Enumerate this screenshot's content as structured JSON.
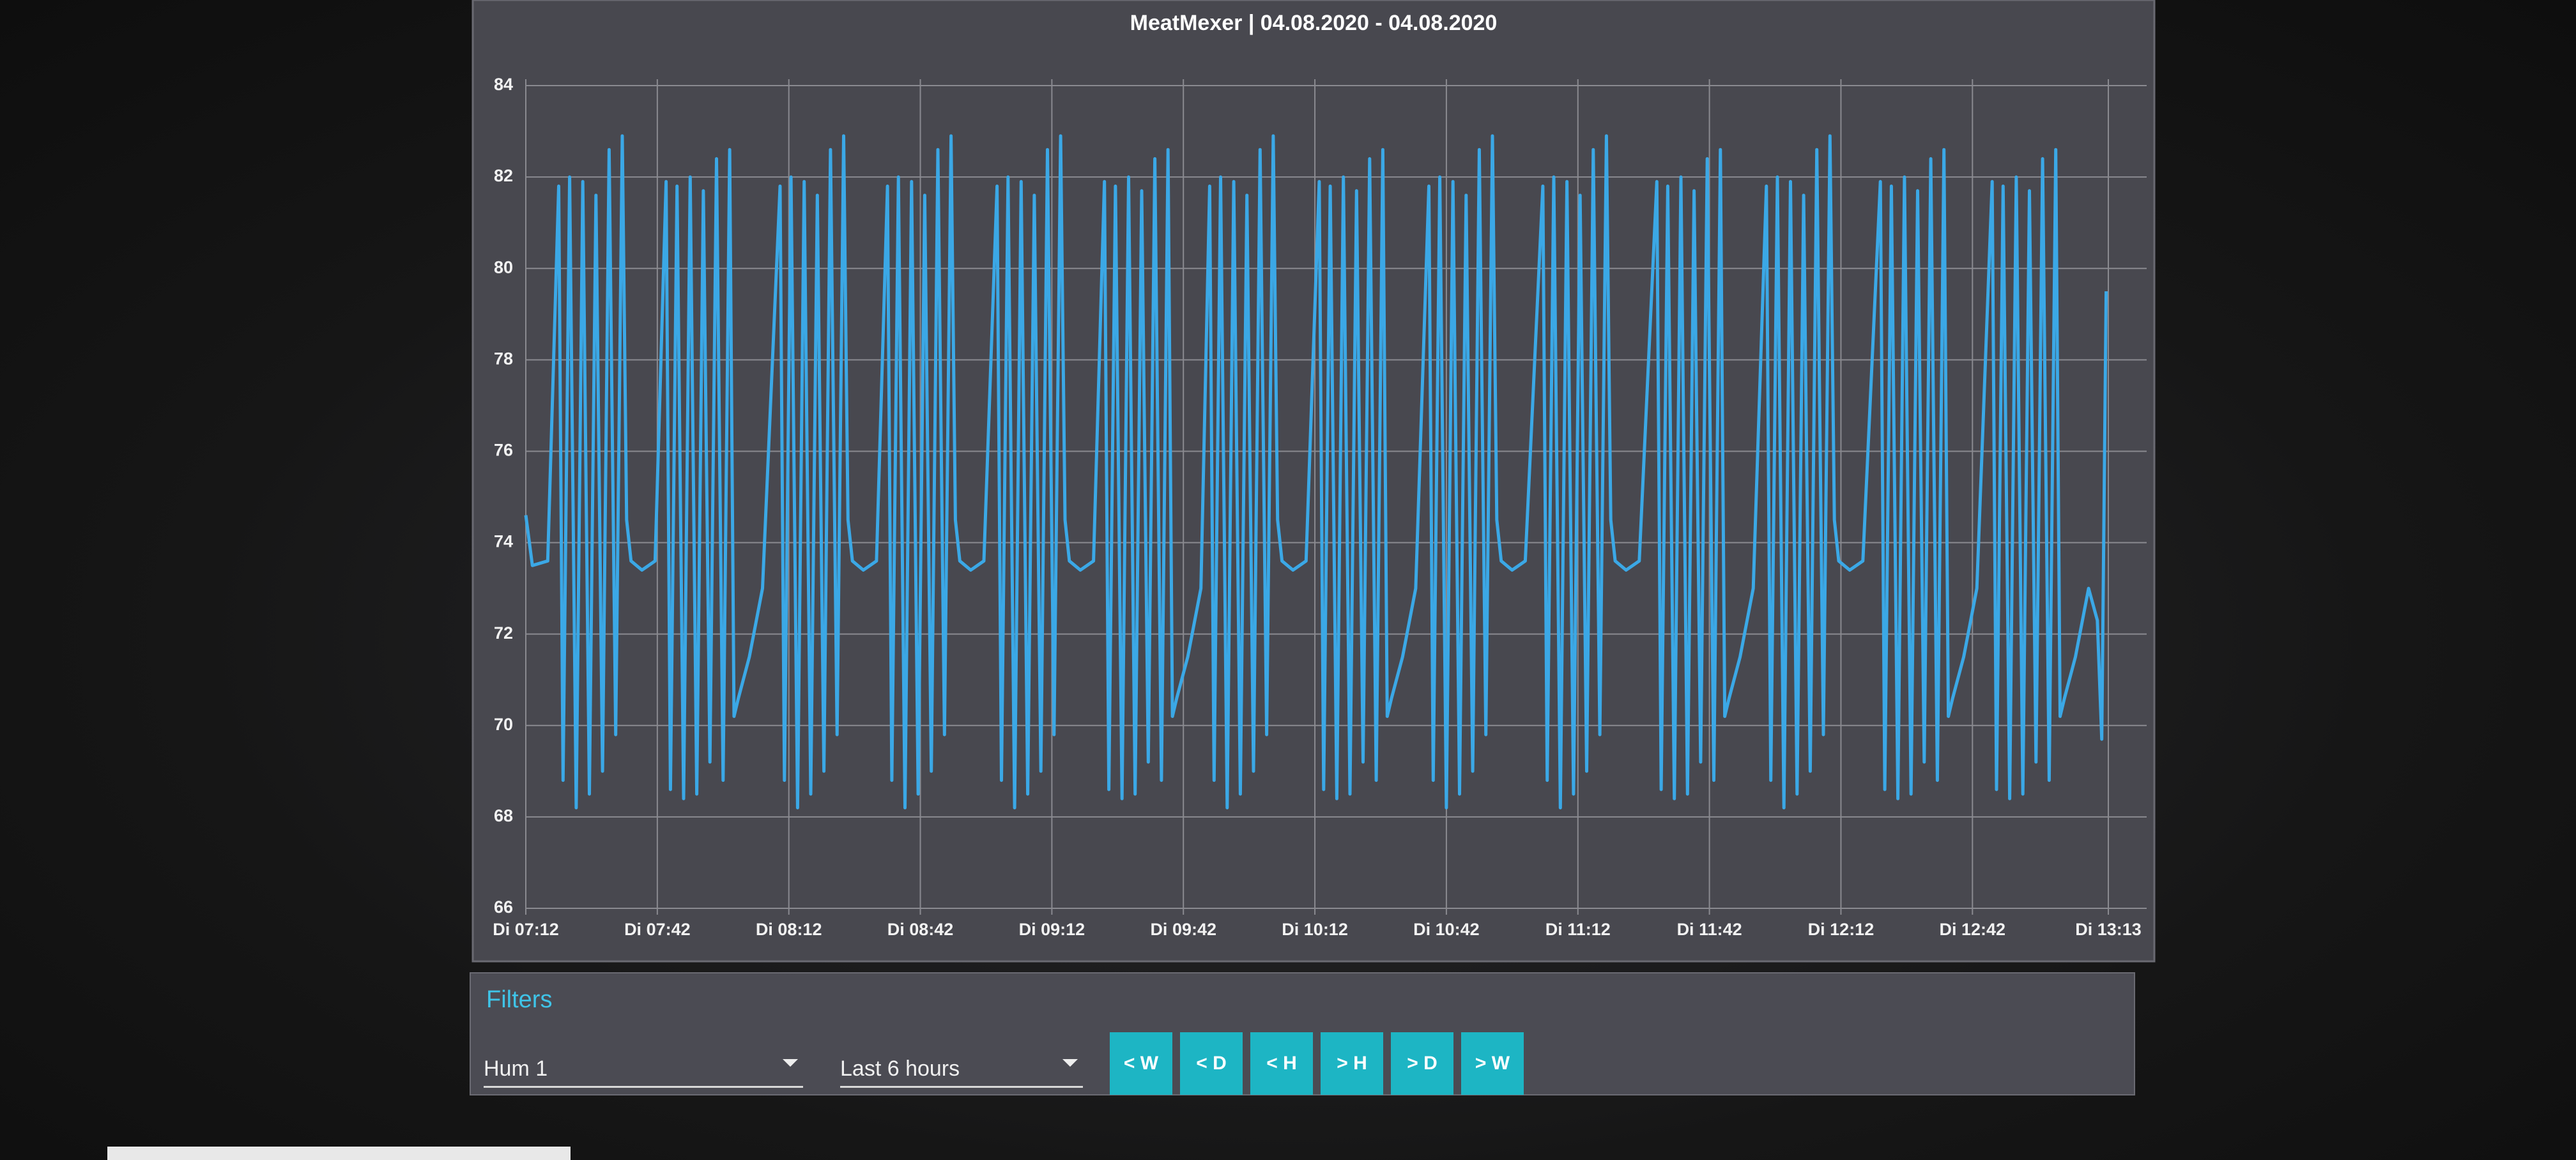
{
  "chart_data": {
    "type": "line",
    "title": "MeatMexer | 04.08.2020 - 04.08.2020",
    "color": "#3ba8e6",
    "grid": true,
    "ylim": [
      66,
      84
    ],
    "yticks": [
      66,
      68,
      70,
      72,
      74,
      76,
      78,
      80,
      82,
      84
    ],
    "xlim": [
      432,
      793
    ],
    "xticks": [
      {
        "value": 432,
        "label": "Di 07:12"
      },
      {
        "value": 462,
        "label": "Di 07:42"
      },
      {
        "value": 492,
        "label": "Di 08:12"
      },
      {
        "value": 522,
        "label": "Di 08:42"
      },
      {
        "value": 552,
        "label": "Di 09:12"
      },
      {
        "value": 582,
        "label": "Di 09:42"
      },
      {
        "value": 612,
        "label": "Di 10:12"
      },
      {
        "value": 642,
        "label": "Di 10:42"
      },
      {
        "value": 672,
        "label": "Di 11:12"
      },
      {
        "value": 702,
        "label": "Di 11:42"
      },
      {
        "value": 732,
        "label": "Di 12:12"
      },
      {
        "value": 762,
        "label": "Di 12:42"
      },
      {
        "value": 793,
        "label": "Di 13:13"
      }
    ],
    "x": [
      432,
      433.5,
      437,
      439.5,
      440.5,
      442,
      443.5,
      445,
      446.5,
      448,
      449.5,
      451,
      452.5,
      454,
      455,
      456,
      458.5,
      461.5,
      464,
      465,
      466.5,
      468,
      469.5,
      471,
      472.5,
      474,
      475.5,
      477,
      478.5,
      479.5,
      480.5,
      483,
      486,
      490,
      491,
      492.5,
      494,
      495.5,
      497,
      498.5,
      500,
      501.5,
      503,
      504.5,
      505.5,
      506.5,
      509,
      512,
      514.5,
      515.5,
      517,
      518.5,
      520,
      521.5,
      523,
      524.5,
      526,
      527.5,
      529,
      530,
      531,
      533.5,
      536.5,
      539.5,
      540.5,
      542,
      543.5,
      545,
      546.5,
      548,
      549.5,
      551,
      552.5,
      554,
      555,
      556,
      558.5,
      561.5,
      564,
      565,
      566.5,
      568,
      569.5,
      571,
      572.5,
      574,
      575.5,
      577,
      578.5,
      579.5,
      580.5,
      583,
      586,
      588,
      589,
      590.5,
      592,
      593.5,
      595,
      596.5,
      598,
      599.5,
      601,
      602.5,
      603.5,
      604.5,
      607,
      610,
      613,
      614,
      615.5,
      617,
      618.5,
      620,
      621.5,
      623,
      624.5,
      626,
      627.5,
      628.5,
      629.5,
      632,
      635,
      638,
      639,
      640.5,
      642,
      643.5,
      645,
      646.5,
      648,
      649.5,
      651,
      652.5,
      653.5,
      654.5,
      657,
      660,
      664,
      665,
      666.5,
      668,
      669.5,
      671,
      672.5,
      674,
      675.5,
      677,
      678.5,
      679.5,
      680.5,
      683,
      686,
      690,
      691,
      692.5,
      694,
      695.5,
      697,
      698.5,
      700,
      701.5,
      703,
      704.5,
      705.5,
      706.5,
      709,
      712,
      715,
      716,
      717.5,
      719,
      720.5,
      722,
      723.5,
      725,
      726.5,
      728,
      729.5,
      730.5,
      731.5,
      734,
      737,
      741,
      742,
      743.5,
      745,
      746.5,
      748,
      749.5,
      751,
      752.5,
      754,
      755.5,
      756.5,
      757.5,
      760,
      763,
      766.5,
      767.5,
      769,
      770.5,
      772,
      773.5,
      775,
      776.5,
      778,
      779.5,
      781,
      782,
      783,
      785.5,
      788.5,
      790.5,
      791.5,
      792.5
    ],
    "values": [
      74.6,
      73.5,
      73.6,
      81.8,
      68.8,
      82,
      68.2,
      81.9,
      68.5,
      81.6,
      69,
      82.6,
      69.8,
      82.9,
      74.5,
      73.6,
      73.4,
      73.6,
      81.9,
      68.6,
      81.8,
      68.4,
      82,
      68.5,
      81.7,
      69.2,
      82.4,
      68.8,
      82.6,
      70.2,
      70.6,
      71.5,
      73,
      81.8,
      68.8,
      82,
      68.2,
      81.9,
      68.5,
      81.6,
      69,
      82.6,
      69.8,
      82.9,
      74.5,
      73.6,
      73.4,
      73.6,
      81.8,
      68.8,
      82,
      68.2,
      81.9,
      68.5,
      81.6,
      69,
      82.6,
      69.8,
      82.9,
      74.5,
      73.6,
      73.4,
      73.6,
      81.8,
      68.8,
      82,
      68.2,
      81.9,
      68.5,
      81.6,
      69,
      82.6,
      69.8,
      82.9,
      74.5,
      73.6,
      73.4,
      73.6,
      81.9,
      68.6,
      81.8,
      68.4,
      82,
      68.5,
      81.7,
      69.2,
      82.4,
      68.8,
      82.6,
      70.2,
      70.6,
      71.5,
      73,
      81.8,
      68.8,
      82,
      68.2,
      81.9,
      68.5,
      81.6,
      69,
      82.6,
      69.8,
      82.9,
      74.5,
      73.6,
      73.4,
      73.6,
      81.9,
      68.6,
      81.8,
      68.4,
      82,
      68.5,
      81.7,
      69.2,
      82.4,
      68.8,
      82.6,
      70.2,
      70.6,
      71.5,
      73,
      81.8,
      68.8,
      82,
      68.2,
      81.9,
      68.5,
      81.6,
      69,
      82.6,
      69.8,
      82.9,
      74.5,
      73.6,
      73.4,
      73.6,
      81.8,
      68.8,
      82,
      68.2,
      81.9,
      68.5,
      81.6,
      69,
      82.6,
      69.8,
      82.9,
      74.5,
      73.6,
      73.4,
      73.6,
      81.9,
      68.6,
      81.8,
      68.4,
      82,
      68.5,
      81.7,
      69.2,
      82.4,
      68.8,
      82.6,
      70.2,
      70.6,
      71.5,
      73,
      81.8,
      68.8,
      82,
      68.2,
      81.9,
      68.5,
      81.6,
      69,
      82.6,
      69.8,
      82.9,
      74.5,
      73.6,
      73.4,
      73.6,
      81.9,
      68.6,
      81.8,
      68.4,
      82,
      68.5,
      81.7,
      69.2,
      82.4,
      68.8,
      82.6,
      70.2,
      70.6,
      71.5,
      73,
      81.9,
      68.6,
      81.8,
      68.4,
      82,
      68.5,
      81.7,
      69.2,
      82.4,
      68.8,
      82.6,
      70.2,
      70.6,
      71.5,
      73,
      72.3,
      69.7,
      79.5
    ]
  },
  "filters": {
    "title": "Filters",
    "sensor": "Hum 1",
    "range": "Last 6 hours",
    "buttons": [
      "< W",
      "< D",
      "< H",
      "> H",
      "> D",
      "> W"
    ]
  }
}
